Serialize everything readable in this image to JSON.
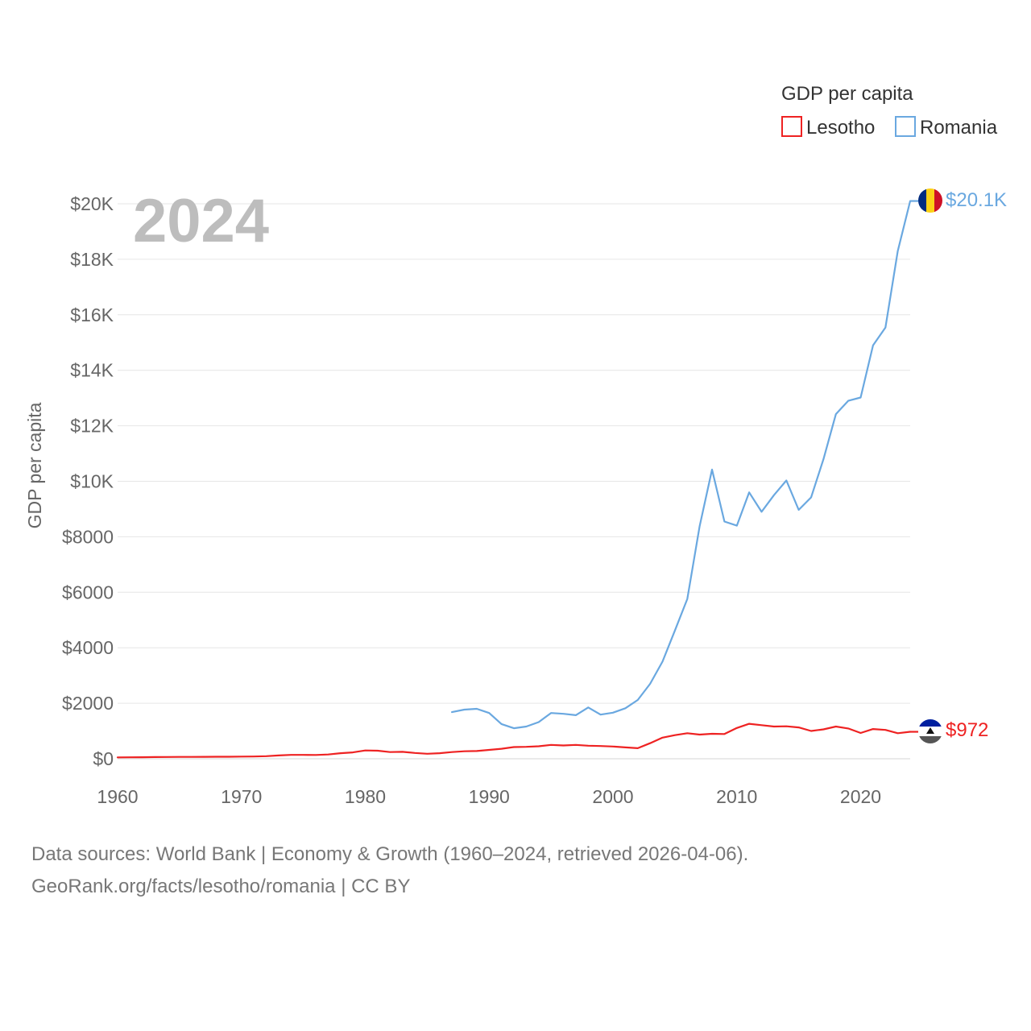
{
  "chart_data": {
    "type": "line",
    "ylabel": "GDP per capita",
    "year_label": "2024",
    "legend": {
      "title": "GDP per capita",
      "position": "top-right"
    },
    "x_range": [
      1960,
      2024
    ],
    "ylim": [
      0,
      20000
    ],
    "x_ticks": [
      {
        "value": 1960,
        "label": "1960"
      },
      {
        "value": 1970,
        "label": "1970"
      },
      {
        "value": 1980,
        "label": "1980"
      },
      {
        "value": 1990,
        "label": "1990"
      },
      {
        "value": 2000,
        "label": "2000"
      },
      {
        "value": 2010,
        "label": "2010"
      },
      {
        "value": 2020,
        "label": "2020"
      }
    ],
    "y_ticks": [
      {
        "value": 0,
        "label": "$0"
      },
      {
        "value": 2000,
        "label": "$2000"
      },
      {
        "value": 4000,
        "label": "$4000"
      },
      {
        "value": 6000,
        "label": "$6000"
      },
      {
        "value": 8000,
        "label": "$8000"
      },
      {
        "value": 10000,
        "label": "$10K"
      },
      {
        "value": 12000,
        "label": "$12K"
      },
      {
        "value": 14000,
        "label": "$14K"
      },
      {
        "value": 16000,
        "label": "$16K"
      },
      {
        "value": 18000,
        "label": "$18K"
      },
      {
        "value": 20000,
        "label": "$20K"
      }
    ],
    "series": [
      {
        "name": "Lesotho",
        "color": "#ee2222",
        "end_label": "$972",
        "flag_icon": "lesotho-flag-icon",
        "x": [
          1960,
          1961,
          1962,
          1963,
          1964,
          1965,
          1966,
          1967,
          1968,
          1969,
          1970,
          1971,
          1972,
          1973,
          1974,
          1975,
          1976,
          1977,
          1978,
          1979,
          1980,
          1981,
          1982,
          1983,
          1984,
          1985,
          1986,
          1987,
          1988,
          1989,
          1990,
          1991,
          1992,
          1993,
          1994,
          1995,
          1996,
          1997,
          1998,
          1999,
          2000,
          2001,
          2002,
          2003,
          2004,
          2005,
          2006,
          2007,
          2008,
          2009,
          2010,
          2011,
          2012,
          2013,
          2014,
          2015,
          2016,
          2017,
          2018,
          2019,
          2020,
          2021,
          2022,
          2023,
          2024
        ],
        "values": [
          50,
          52,
          56,
          60,
          64,
          66,
          68,
          70,
          72,
          74,
          78,
          82,
          92,
          120,
          140,
          140,
          135,
          155,
          200,
          230,
          300,
          290,
          240,
          250,
          210,
          180,
          200,
          240,
          270,
          280,
          320,
          360,
          420,
          430,
          450,
          500,
          480,
          500,
          470,
          460,
          440,
          410,
          380,
          560,
          760,
          850,
          920,
          870,
          900,
          890,
          1110,
          1260,
          1210,
          1160,
          1170,
          1130,
          1000,
          1060,
          1160,
          1090,
          930,
          1070,
          1040,
          920,
          972
        ]
      },
      {
        "name": "Romania",
        "color": "#6aa8e0",
        "end_label": "$20.1K",
        "flag_icon": "romania-flag-icon",
        "x": [
          1987,
          1988,
          1989,
          1990,
          1991,
          1992,
          1993,
          1994,
          1995,
          1996,
          1997,
          1998,
          1999,
          2000,
          2001,
          2002,
          2003,
          2004,
          2005,
          2006,
          2007,
          2008,
          2009,
          2010,
          2011,
          2012,
          2013,
          2014,
          2015,
          2016,
          2017,
          2018,
          2019,
          2020,
          2021,
          2022,
          2023,
          2024
        ],
        "values": [
          1680,
          1770,
          1800,
          1650,
          1250,
          1100,
          1160,
          1320,
          1650,
          1620,
          1570,
          1850,
          1590,
          1660,
          1820,
          2120,
          2700,
          3500,
          4620,
          5760,
          8380,
          10420,
          8550,
          8400,
          9600,
          8900,
          9500,
          10030,
          8970,
          9420,
          10800,
          12420,
          12900,
          13020,
          14900,
          15540,
          18300,
          20100
        ]
      }
    ]
  },
  "footer": {
    "sources_line": "Data sources: World Bank | Economy & Growth (1960–2024, retrieved 2026-04-06).",
    "credit_line": "GeoRank.org/facts/lesotho/romania | CC BY"
  }
}
